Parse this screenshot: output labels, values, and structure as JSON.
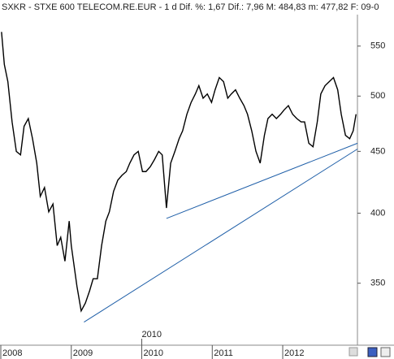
{
  "chart_data": {
    "type": "line",
    "title": "SXKR - STXE 600 TELECOM.RE.EUR - 1 d  Dif. %: 1,67  Dif.: 7,96  M: 484,83  m: 477,82  F: 09-0",
    "log_scale": true,
    "xlim": [
      2008,
      2013.06
    ],
    "xticks": [
      2008,
      2009,
      2010,
      2011,
      2012
    ],
    "ylim": [
      311,
      584
    ],
    "yticks": [
      350,
      400,
      450,
      500,
      550
    ],
    "color": "#000000",
    "x": [
      2008.01,
      2008.05,
      2008.1,
      2008.16,
      2008.22,
      2008.28,
      2008.33,
      2008.39,
      2008.45,
      2008.51,
      2008.56,
      2008.62,
      2008.68,
      2008.74,
      2008.8,
      2008.85,
      2008.91,
      2008.97,
      2009.0,
      2009.08,
      2009.14,
      2009.2,
      2009.26,
      2009.31,
      2009.37,
      2009.43,
      2009.49,
      2009.54,
      2009.6,
      2009.66,
      2009.72,
      2009.78,
      2009.83,
      2009.89,
      2009.95,
      2010.01,
      2010.06,
      2010.12,
      2010.18,
      2010.24,
      2010.29,
      2010.35,
      2010.41,
      2010.47,
      2010.53,
      2010.58,
      2010.64,
      2010.7,
      2010.76,
      2010.81,
      2010.87,
      2010.93,
      2010.99,
      2011.04,
      2011.1,
      2011.16,
      2011.22,
      2011.27,
      2011.33,
      2011.39,
      2011.45,
      2011.5,
      2011.56,
      2011.62,
      2011.68,
      2011.74,
      2011.79,
      2011.85,
      2011.91,
      2011.97,
      2012.02,
      2012.08,
      2012.14,
      2012.2,
      2012.26,
      2012.31,
      2012.37,
      2012.43,
      2012.49,
      2012.54,
      2012.6,
      2012.66,
      2012.72,
      2012.78,
      2012.83,
      2012.89,
      2012.95,
      2013.0,
      2013.04
    ],
    "series": [
      {
        "values": [
          565,
          531,
          514,
          476,
          450,
          447,
          472,
          479,
          461,
          440,
          413,
          420,
          401,
          407,
          376,
          382,
          365,
          394,
          376,
          348,
          332,
          337,
          345,
          353,
          353,
          376,
          394,
          401,
          417,
          426,
          430,
          433,
          440,
          447,
          450,
          433,
          433,
          437,
          443,
          450,
          447,
          404,
          440,
          450,
          461,
          468,
          483,
          494,
          502,
          510,
          498,
          502,
          494,
          506,
          518,
          514,
          498,
          502,
          506,
          498,
          491,
          483,
          468,
          450,
          440,
          464,
          479,
          483,
          479,
          483,
          487,
          491,
          483,
          479,
          476,
          476,
          457,
          454,
          476,
          502,
          510,
          514,
          518,
          506,
          483,
          464,
          461,
          468,
          483
        ]
      }
    ],
    "trendlines": [
      {
        "x": [
          2010.35,
          2013.06
        ],
        "values": [
          396,
          457
        ],
        "color": "#1f5fa8"
      },
      {
        "x": [
          2009.18,
          2013.06
        ],
        "values": [
          325,
          452
        ],
        "color": "#1f5fa8"
      }
    ],
    "annotations": [
      {
        "text": "2010",
        "x": 2010
      }
    ]
  }
}
